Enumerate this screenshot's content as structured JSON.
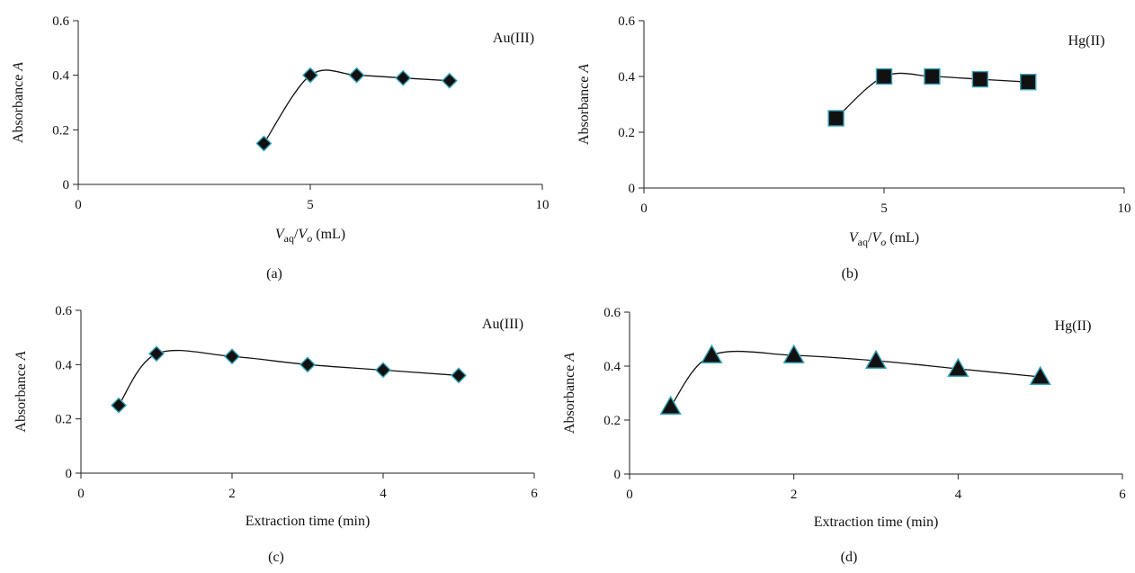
{
  "chart_data": [
    {
      "type": "line",
      "panel_label": "(a)",
      "annotation": "Au(III)",
      "ylabel": "Absorbance A",
      "xlabel": {
        "v": "V",
        "v_sub": "aq",
        "slash": "/",
        "o": "V",
        "o_sub": "o",
        "unit": " (mL)"
      },
      "xlim": [
        0,
        10
      ],
      "ylim": [
        0,
        0.6
      ],
      "xticks": [
        "0",
        "5",
        "10"
      ],
      "yticks": [
        "0",
        "0.2",
        "0.4",
        "0.6"
      ],
      "xtick_values": [
        0,
        5,
        10
      ],
      "ytick_values": [
        0,
        0.2,
        0.4,
        0.6
      ],
      "marker": "diamond",
      "x": [
        4,
        5,
        6,
        7,
        8
      ],
      "y": [
        0.15,
        0.4,
        0.4,
        0.39,
        0.38
      ]
    },
    {
      "type": "line",
      "panel_label": "(b)",
      "annotation": "Hg(II)",
      "ylabel": "Absorbance A",
      "xlabel": {
        "v": "V",
        "v_sub": "aq",
        "slash": "/",
        "o": "V",
        "o_sub": "o",
        "unit": " (mL)"
      },
      "xlim": [
        0,
        10
      ],
      "ylim": [
        0,
        0.6
      ],
      "xticks": [
        "0",
        "5",
        "10"
      ],
      "yticks": [
        "0",
        "0.2",
        "0.4",
        "0.6"
      ],
      "xtick_values": [
        0,
        5,
        10
      ],
      "ytick_values": [
        0,
        0.2,
        0.4,
        0.6
      ],
      "marker": "square",
      "x": [
        4,
        5,
        6,
        7,
        8
      ],
      "y": [
        0.25,
        0.4,
        0.4,
        0.39,
        0.38
      ]
    },
    {
      "type": "line",
      "panel_label": "(c)",
      "annotation": "Au(III)",
      "ylabel": "Absorbance A",
      "xlabel_text": "Extraction time (min)",
      "xlim": [
        0,
        6
      ],
      "ylim": [
        0,
        0.6
      ],
      "xticks": [
        "0",
        "2",
        "4",
        "6"
      ],
      "yticks": [
        "0",
        "0.2",
        "0.4",
        "0.6"
      ],
      "xtick_values": [
        0,
        2,
        4,
        6
      ],
      "ytick_values": [
        0,
        0.2,
        0.4,
        0.6
      ],
      "marker": "diamond",
      "x": [
        0.5,
        1,
        2,
        3,
        4,
        5
      ],
      "y": [
        0.25,
        0.44,
        0.43,
        0.4,
        0.38,
        0.36
      ]
    },
    {
      "type": "line",
      "panel_label": "(d)",
      "annotation": "Hg(II)",
      "ylabel": "Absorbance A",
      "xlabel_text": "Extraction time (min)",
      "xlim": [
        0,
        6
      ],
      "ylim": [
        0,
        0.6
      ],
      "xticks": [
        "0",
        "2",
        "4",
        "6"
      ],
      "yticks": [
        "0",
        "0.2",
        "0.4",
        "0.6"
      ],
      "xtick_values": [
        0,
        2,
        4,
        6
      ],
      "ytick_values": [
        0,
        0.2,
        0.4,
        0.6
      ],
      "marker": "triangle",
      "x": [
        0.5,
        1,
        2,
        3,
        4,
        5
      ],
      "y": [
        0.25,
        0.44,
        0.44,
        0.42,
        0.39,
        0.36
      ]
    }
  ],
  "colors": {
    "marker_fill": "#111111",
    "marker_edge": "#3aa6b9",
    "line": "#111111",
    "axis": "#222222"
  }
}
